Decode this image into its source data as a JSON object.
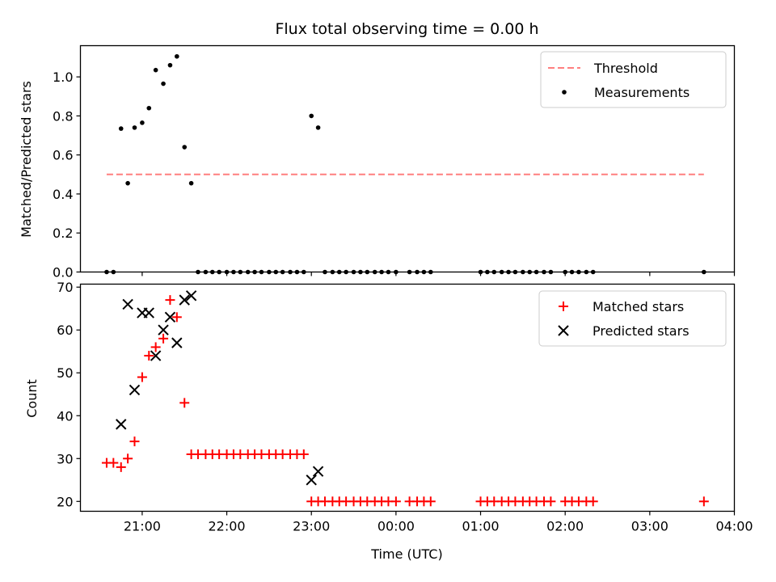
{
  "chart_data": {
    "type": "scatter",
    "title": "Flux total observing time = 0.00 h",
    "xlabel": "Time (UTC)",
    "x_ticks": [
      "21:00",
      "22:00",
      "23:00",
      "00:00",
      "01:00",
      "02:00",
      "03:00",
      "04:00"
    ],
    "xlim_hours": [
      20.27,
      28.0
    ],
    "panels": [
      {
        "name": "ratio",
        "ylabel": "Matched/Predicted stars",
        "ylim": [
          0.0,
          1.16
        ],
        "yticks": [
          0.0,
          0.2,
          0.4,
          0.6,
          0.8,
          1.0
        ],
        "ytick_labels": [
          "0.0",
          "0.2",
          "0.4",
          "0.6",
          "0.8",
          "1.0"
        ],
        "legend_position": "top-right",
        "threshold": {
          "name": "Threshold",
          "y": 0.5,
          "x_range": [
            20.58,
            27.64
          ],
          "color": "#ff7f7f"
        },
        "series": [
          {
            "name": "Measurements",
            "marker": "dot",
            "color": "#000000",
            "points": [
              [
                20.58,
                0.0
              ],
              [
                20.66,
                0.0
              ],
              [
                20.75,
                0.735
              ],
              [
                20.83,
                0.455
              ],
              [
                20.91,
                0.74
              ],
              [
                21.0,
                0.765
              ],
              [
                21.08,
                0.84
              ],
              [
                21.16,
                1.035
              ],
              [
                21.25,
                0.965
              ],
              [
                21.33,
                1.06
              ],
              [
                21.41,
                1.105
              ],
              [
                21.5,
                0.64
              ],
              [
                21.58,
                0.455
              ],
              [
                21.66,
                0.0
              ],
              [
                21.75,
                0.0
              ],
              [
                21.83,
                0.0
              ],
              [
                21.91,
                0.0
              ],
              [
                22.0,
                0.0
              ],
              [
                22.08,
                0.0
              ],
              [
                22.16,
                0.0
              ],
              [
                22.25,
                0.0
              ],
              [
                22.33,
                0.0
              ],
              [
                22.41,
                0.0
              ],
              [
                22.5,
                0.0
              ],
              [
                22.58,
                0.0
              ],
              [
                22.66,
                0.0
              ],
              [
                22.75,
                0.0
              ],
              [
                22.83,
                0.0
              ],
              [
                22.91,
                0.0
              ],
              [
                23.0,
                0.8
              ],
              [
                23.08,
                0.74
              ],
              [
                23.16,
                0.0
              ],
              [
                23.25,
                0.0
              ],
              [
                23.33,
                0.0
              ],
              [
                23.41,
                0.0
              ],
              [
                23.5,
                0.0
              ],
              [
                23.58,
                0.0
              ],
              [
                23.66,
                0.0
              ],
              [
                23.75,
                0.0
              ],
              [
                23.83,
                0.0
              ],
              [
                23.91,
                0.0
              ],
              [
                24.0,
                0.0
              ],
              [
                24.16,
                0.0
              ],
              [
                24.25,
                0.0
              ],
              [
                24.33,
                0.0
              ],
              [
                24.41,
                0.0
              ],
              [
                25.0,
                0.0
              ],
              [
                25.08,
                0.0
              ],
              [
                25.16,
                0.0
              ],
              [
                25.25,
                0.0
              ],
              [
                25.33,
                0.0
              ],
              [
                25.41,
                0.0
              ],
              [
                25.5,
                0.0
              ],
              [
                25.58,
                0.0
              ],
              [
                25.66,
                0.0
              ],
              [
                25.75,
                0.0
              ],
              [
                25.83,
                0.0
              ],
              [
                26.0,
                0.0
              ],
              [
                26.08,
                0.0
              ],
              [
                26.16,
                0.0
              ],
              [
                26.25,
                0.0
              ],
              [
                26.33,
                0.0
              ],
              [
                27.64,
                0.0
              ]
            ]
          }
        ]
      },
      {
        "name": "count",
        "ylabel": "Count",
        "ylim": [
          17.7,
          70.7
        ],
        "yticks": [
          20,
          30,
          40,
          50,
          60,
          70
        ],
        "ytick_labels": [
          "20",
          "30",
          "40",
          "50",
          "60",
          "70"
        ],
        "legend_position": "top-right",
        "series": [
          {
            "name": "Matched stars",
            "marker": "plus",
            "color": "#ff0000",
            "points": [
              [
                20.58,
                29
              ],
              [
                20.66,
                29
              ],
              [
                20.75,
                28
              ],
              [
                20.83,
                30
              ],
              [
                20.91,
                34
              ],
              [
                21.0,
                49
              ],
              [
                21.08,
                54
              ],
              [
                21.16,
                56
              ],
              [
                21.25,
                58
              ],
              [
                21.33,
                67
              ],
              [
                21.41,
                63
              ],
              [
                21.5,
                43
              ],
              [
                21.58,
                31
              ],
              [
                21.66,
                31
              ],
              [
                21.75,
                31
              ],
              [
                21.83,
                31
              ],
              [
                21.91,
                31
              ],
              [
                22.0,
                31
              ],
              [
                22.08,
                31
              ],
              [
                22.16,
                31
              ],
              [
                22.25,
                31
              ],
              [
                22.33,
                31
              ],
              [
                22.41,
                31
              ],
              [
                22.5,
                31
              ],
              [
                22.58,
                31
              ],
              [
                22.66,
                31
              ],
              [
                22.75,
                31
              ],
              [
                22.83,
                31
              ],
              [
                22.91,
                31
              ],
              [
                23.0,
                20
              ],
              [
                23.08,
                20
              ],
              [
                23.16,
                20
              ],
              [
                23.25,
                20
              ],
              [
                23.33,
                20
              ],
              [
                23.41,
                20
              ],
              [
                23.5,
                20
              ],
              [
                23.58,
                20
              ],
              [
                23.66,
                20
              ],
              [
                23.75,
                20
              ],
              [
                23.83,
                20
              ],
              [
                23.91,
                20
              ],
              [
                24.0,
                20
              ],
              [
                24.16,
                20
              ],
              [
                24.25,
                20
              ],
              [
                24.33,
                20
              ],
              [
                24.41,
                20
              ],
              [
                25.0,
                20
              ],
              [
                25.08,
                20
              ],
              [
                25.16,
                20
              ],
              [
                25.25,
                20
              ],
              [
                25.33,
                20
              ],
              [
                25.41,
                20
              ],
              [
                25.5,
                20
              ],
              [
                25.58,
                20
              ],
              [
                25.66,
                20
              ],
              [
                25.75,
                20
              ],
              [
                25.83,
                20
              ],
              [
                26.0,
                20
              ],
              [
                26.08,
                20
              ],
              [
                26.16,
                20
              ],
              [
                26.25,
                20
              ],
              [
                26.33,
                20
              ],
              [
                27.64,
                20
              ]
            ]
          },
          {
            "name": "Predicted stars",
            "marker": "x",
            "color": "#000000",
            "points": [
              [
                20.75,
                38
              ],
              [
                20.83,
                66
              ],
              [
                20.91,
                46
              ],
              [
                21.0,
                64
              ],
              [
                21.08,
                64
              ],
              [
                21.16,
                54
              ],
              [
                21.25,
                60
              ],
              [
                21.33,
                63
              ],
              [
                21.41,
                57
              ],
              [
                21.5,
                67
              ],
              [
                21.58,
                68
              ],
              [
                23.0,
                25
              ],
              [
                23.08,
                27
              ]
            ]
          }
        ]
      }
    ]
  }
}
